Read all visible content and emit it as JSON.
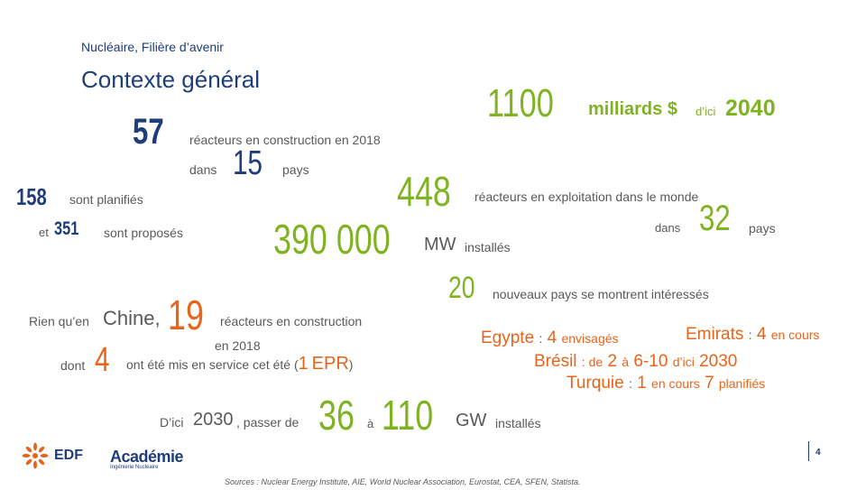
{
  "header": {
    "subtitle": "Nucléaire, Filière d’avenir",
    "title": "Contexte général"
  },
  "stats": {
    "n57": "57",
    "reactors_construction_2018": "réacteurs en construction en 2018",
    "dans": "dans",
    "n15": "15",
    "pays": "pays",
    "n158": "158",
    "sont_planifies": "sont planifiés",
    "et": "et",
    "n351": "351",
    "sont_proposes": "sont proposés",
    "n1100": "1100",
    "milliards": "milliards $",
    "d_ici": "d’ici",
    "y2040": "2040",
    "n448": "448",
    "reactors_exploitation": "réacteurs en exploitation dans le monde",
    "dans2": "dans",
    "n32": "32",
    "pays2": "pays",
    "n390000": "390 000",
    "mw": "MW",
    "installes": "installés",
    "n20": "20",
    "nouveaux_pays": "nouveaux pays se montrent intéressés",
    "rien_qu_en": "Rien qu’en",
    "chine": "Chine,",
    "n19": "19",
    "reactors_construction": "réacteurs en construction",
    "en_2018": "en 2018",
    "dont": "dont",
    "n4": "4",
    "mis_en_service": "ont été mis en service cet été (",
    "n1": "1",
    "epr": "EPR",
    "close_paren": ")",
    "d_ici_2030_label": "D’ici",
    "y2030": "2030",
    "passer_de": ", passer de",
    "n36": "36",
    "a": "à",
    "n110": "110",
    "gw": "GW",
    "installes2": "installés"
  },
  "countries": {
    "egypte": "Egypte",
    "egypte_sep": ":",
    "egypte_n": "4",
    "egypte_txt": "envisagés",
    "emirats": "Emirats",
    "emirats_sep": ":",
    "emirats_n": "4",
    "emirats_txt": "en cours",
    "bresil": "Brésil",
    "bresil_de": ": de",
    "bresil_n1": "2",
    "bresil_a": "à",
    "bresil_n2": "6-10",
    "bresil_dici": "d’ici",
    "bresil_year": "2030",
    "turquie": "Turquie",
    "turquie_sep": ":",
    "turquie_n1": "1",
    "turquie_encours": "en cours",
    "turquie_n2": "7",
    "turquie_planifies": "planifiés"
  },
  "footer": {
    "edf_logo_text": "EDF",
    "academie_logo_text": "Académie",
    "academie_tagline": "Ingénierie Nucléaire",
    "page_number": "4",
    "sources": "Sources : Nuclear Energy Institute, AIE, World Nuclear Association, Eurostat, CEA, SFEN, Statista."
  },
  "colors": {
    "blue": "#1f3d7a",
    "orange": "#e8641b",
    "green": "#7fb321",
    "grey": "#595959"
  }
}
